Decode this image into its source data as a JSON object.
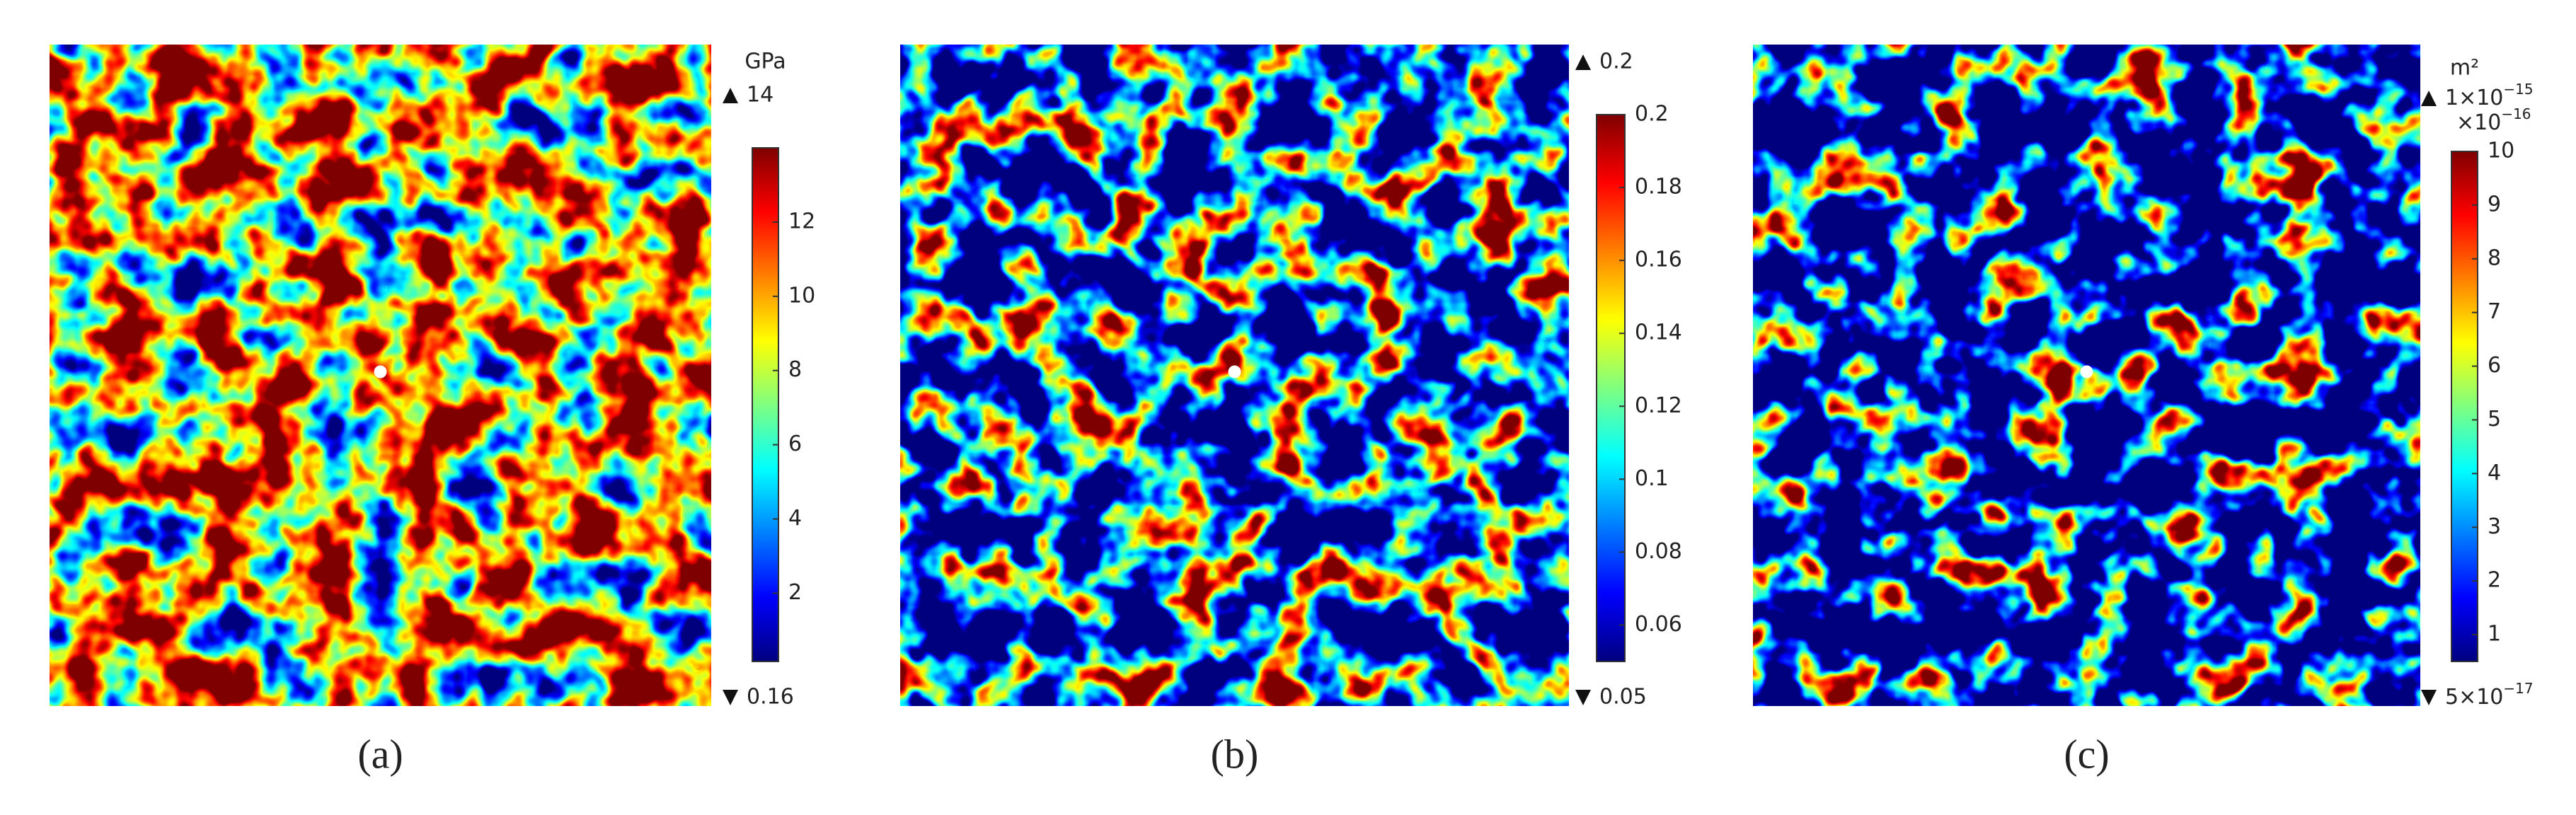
{
  "panels": [
    {
      "caption": "(a)",
      "unit": "GPa",
      "max_label": "14",
      "min_label": "0.16",
      "colorbar": {
        "min": 0.16,
        "max": 14,
        "ticks": [
          2,
          4,
          6,
          8,
          10,
          12
        ]
      }
    },
    {
      "caption": "(b)",
      "max_label": "0.2",
      "min_label": "0.05",
      "colorbar": {
        "min": 0.05,
        "max": 0.2,
        "ticks": [
          0.06,
          0.08,
          0.1,
          0.12,
          0.14,
          0.16,
          0.18,
          0.2
        ]
      }
    },
    {
      "caption": "(c)",
      "unit": "m²",
      "max_label": {
        "base": "1×10",
        "exp": "−15"
      },
      "multiplier": {
        "base": "×10",
        "exp": "−16"
      },
      "min_label": {
        "base": "5×10",
        "exp": "−17"
      },
      "colorbar": {
        "min": 0.5,
        "max": 10,
        "ticks": [
          1,
          2,
          3,
          4,
          5,
          6,
          7,
          8,
          9,
          10
        ]
      }
    }
  ]
}
